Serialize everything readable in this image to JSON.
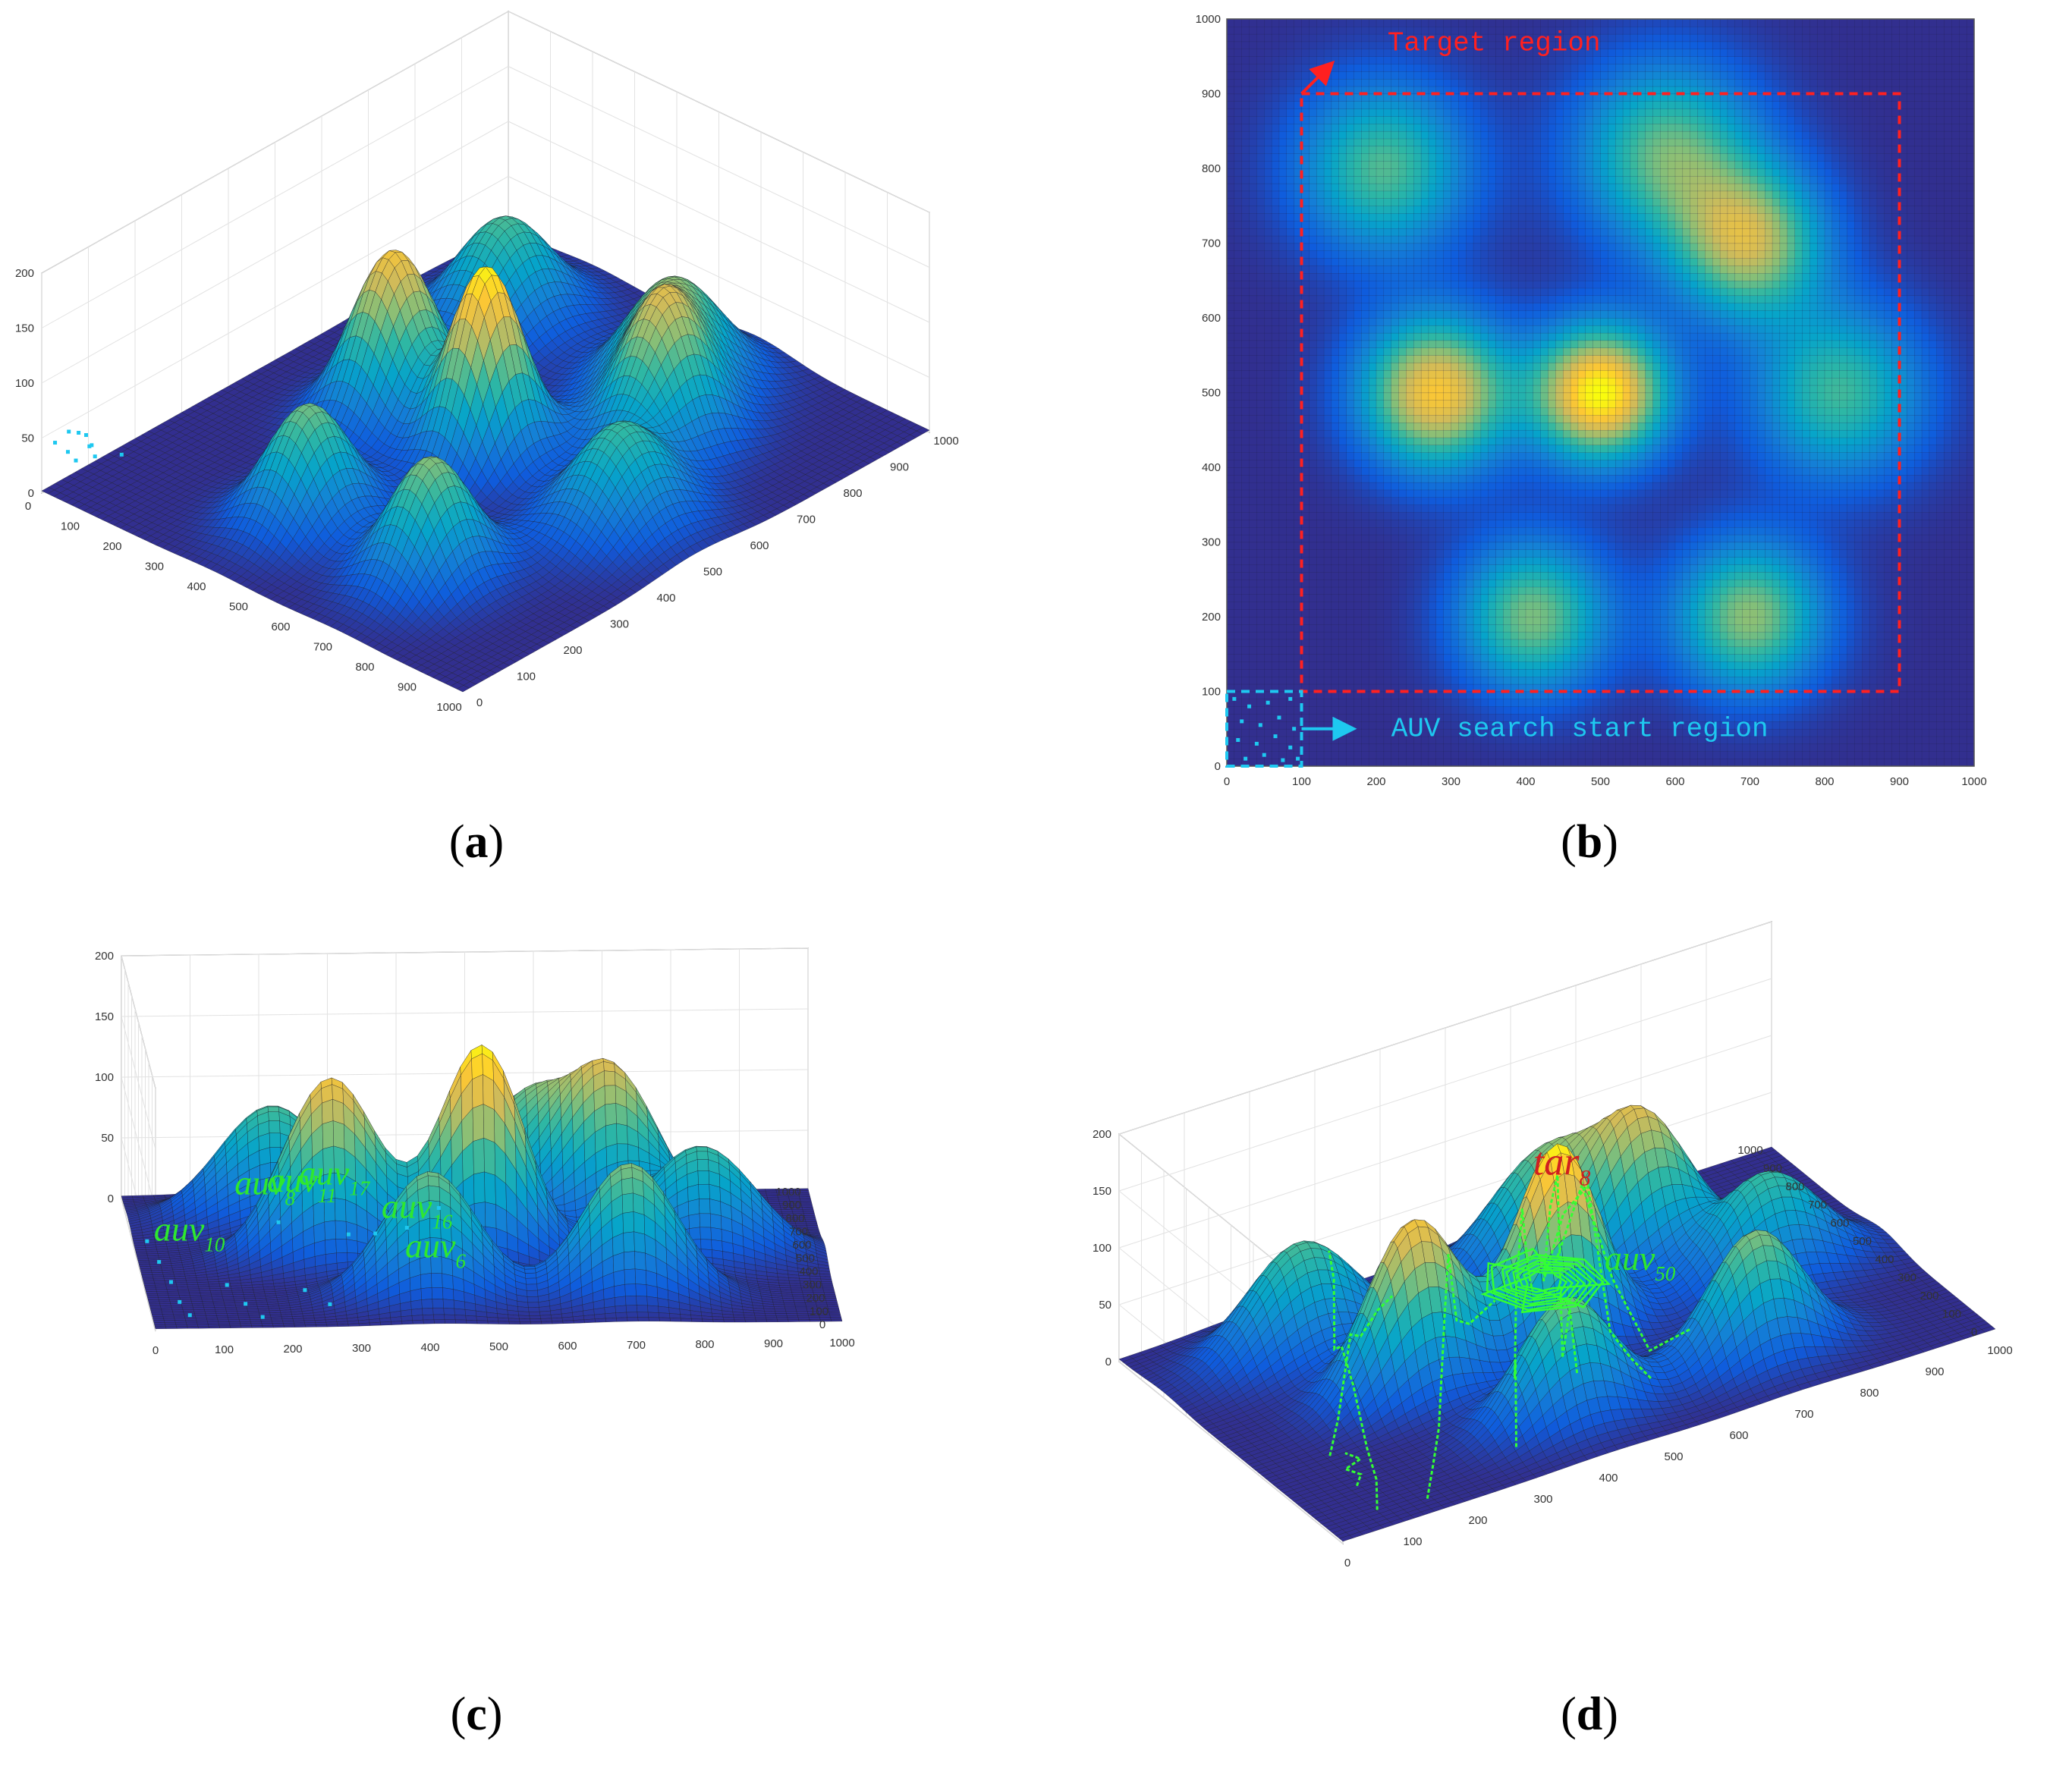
{
  "colors": {
    "parula": [
      "#352a87",
      "#0f5cdd",
      "#1481d6",
      "#06a4ca",
      "#2eb7a4",
      "#87bf77",
      "#d1bb59",
      "#fec832",
      "#f9fb0e"
    ],
    "target_region": "#ff2020",
    "start_region": "#1ec8f0",
    "trajectory": "#33ff33",
    "auv_label": "#2ee82e",
    "tar_label": "#d02020"
  },
  "chart_data": [
    {
      "id": "a",
      "type": "surface",
      "panel_label": "a",
      "xlim": [
        0,
        1000
      ],
      "ylim": [
        0,
        1000
      ],
      "zlim": [
        0,
        200
      ],
      "x_ticks": [
        0,
        100,
        200,
        300,
        400,
        500,
        600,
        700,
        800,
        900,
        1000
      ],
      "y_ticks": [
        0,
        100,
        200,
        300,
        400,
        500,
        600,
        700,
        800,
        900,
        1000
      ],
      "z_ticks": [
        0,
        50,
        100,
        150,
        200
      ],
      "grid": true,
      "auv_markers": [
        [
          20,
          40
        ],
        [
          40,
          20
        ],
        [
          60,
          60
        ],
        [
          30,
          80
        ],
        [
          80,
          30
        ],
        [
          70,
          10
        ],
        [
          10,
          70
        ],
        [
          50,
          50
        ],
        [
          90,
          90
        ],
        [
          15,
          15
        ]
      ]
    },
    {
      "id": "b",
      "type": "heatmap",
      "panel_label": "b",
      "xlim": [
        0,
        1000
      ],
      "ylim": [
        0,
        1000
      ],
      "x_ticks": [
        0,
        100,
        200,
        300,
        400,
        500,
        600,
        700,
        800,
        900,
        1000
      ],
      "y_ticks": [
        0,
        100,
        200,
        300,
        400,
        500,
        600,
        700,
        800,
        900,
        1000
      ],
      "grid": true,
      "target_region": {
        "x": [
          100,
          900
        ],
        "y": [
          100,
          900
        ],
        "label": "Target region"
      },
      "start_region": {
        "x": [
          0,
          100
        ],
        "y": [
          0,
          100
        ],
        "label": "AUV search start region"
      },
      "auv_markers": [
        [
          10,
          90
        ],
        [
          30,
          80
        ],
        [
          55,
          85
        ],
        [
          85,
          90
        ],
        [
          20,
          60
        ],
        [
          45,
          55
        ],
        [
          70,
          65
        ],
        [
          90,
          50
        ],
        [
          15,
          35
        ],
        [
          40,
          30
        ],
        [
          65,
          40
        ],
        [
          85,
          25
        ],
        [
          25,
          10
        ],
        [
          50,
          15
        ],
        [
          75,
          8
        ],
        [
          95,
          10
        ]
      ]
    },
    {
      "id": "c",
      "type": "surface",
      "panel_label": "c",
      "xlim": [
        0,
        1000
      ],
      "ylim": [
        0,
        1000
      ],
      "zlim": [
        0,
        200
      ],
      "x_ticks": [
        0,
        100,
        200,
        300,
        400,
        500,
        600,
        700,
        800,
        900,
        1000
      ],
      "y_ticks": [
        0,
        100,
        200,
        300,
        400,
        500,
        600,
        700,
        800,
        900,
        1000
      ],
      "z_ticks": [
        0,
        50,
        100,
        150,
        200
      ],
      "grid": true,
      "auv_markers": [
        [
          20,
          650
        ],
        [
          30,
          500
        ],
        [
          40,
          350
        ],
        [
          45,
          200
        ],
        [
          55,
          100
        ],
        [
          120,
          320
        ],
        [
          140,
          180
        ],
        [
          160,
          80
        ],
        [
          200,
          420
        ],
        [
          230,
          250
        ],
        [
          260,
          120
        ],
        [
          300,
          380
        ],
        [
          330,
          200
        ],
        [
          380,
          280
        ],
        [
          420,
          150
        ]
      ],
      "annotations": [
        {
          "base": "auv",
          "sub": "8",
          "x": 150,
          "y": 700
        },
        {
          "base": "auv",
          "sub": "10",
          "x": 30,
          "y": 650
        },
        {
          "base": "auv",
          "sub": "16",
          "x": 360,
          "y": 620
        },
        {
          "base": "auv",
          "sub": "11",
          "x": 190,
          "y": 550
        },
        {
          "base": "auv",
          "sub": "17",
          "x": 230,
          "y": 430
        },
        {
          "base": "auv",
          "sub": "6",
          "x": 380,
          "y": 330
        }
      ]
    },
    {
      "id": "d",
      "type": "surface",
      "panel_label": "d",
      "xlim": [
        0,
        1000
      ],
      "ylim": [
        0,
        1000
      ],
      "zlim": [
        0,
        200
      ],
      "x_ticks": [
        0,
        100,
        200,
        300,
        400,
        500,
        600,
        700,
        800,
        900,
        1000
      ],
      "y_ticks": [
        0,
        100,
        200,
        300,
        400,
        500,
        600,
        700,
        800,
        900,
        1000
      ],
      "z_ticks": [
        0,
        50,
        100,
        150,
        200
      ],
      "grid": true,
      "trajectories": [
        [
          [
            80,
            80
          ],
          [
            120,
            200
          ],
          [
            150,
            330
          ],
          [
            170,
            450
          ],
          [
            190,
            560
          ],
          [
            210,
            650
          ],
          [
            240,
            740
          ],
          [
            260,
            820
          ]
        ],
        [
          [
            150,
            60
          ],
          [
            200,
            180
          ],
          [
            250,
            300
          ],
          [
            300,
            420
          ],
          [
            340,
            520
          ],
          [
            380,
            600
          ],
          [
            420,
            660
          ],
          [
            470,
            690
          ]
        ],
        [
          [
            300,
            100
          ],
          [
            340,
            220
          ],
          [
            380,
            340
          ],
          [
            420,
            450
          ],
          [
            460,
            540
          ],
          [
            490,
            600
          ],
          [
            510,
            640
          ]
        ],
        [
          [
            400,
            120
          ],
          [
            430,
            240
          ],
          [
            460,
            360
          ],
          [
            490,
            470
          ],
          [
            510,
            560
          ],
          [
            520,
            620
          ]
        ],
        [
          [
            520,
            140
          ],
          [
            530,
            260
          ],
          [
            540,
            380
          ],
          [
            540,
            480
          ],
          [
            530,
            560
          ],
          [
            520,
            620
          ]
        ],
        [
          [
            100,
            350
          ],
          [
            140,
            430
          ],
          [
            190,
            520
          ],
          [
            240,
            620
          ],
          [
            300,
            720
          ],
          [
            350,
            800
          ]
        ],
        [
          [
            90,
            200
          ],
          [
            110,
            240
          ],
          [
            100,
            280
          ],
          [
            130,
            300
          ],
          [
            120,
            340
          ]
        ],
        [
          [
            600,
            200
          ],
          [
            580,
            320
          ],
          [
            560,
            430
          ],
          [
            545,
            520
          ],
          [
            530,
            600
          ]
        ]
      ],
      "cluster_center": [
        520,
        620
      ],
      "annotations": [
        {
          "base": "tar",
          "sub": "8",
          "x": 470,
          "y": 520,
          "kind": "tar"
        },
        {
          "base": "auv",
          "sub": "50",
          "x": 600,
          "y": 580,
          "kind": "auv"
        }
      ]
    }
  ]
}
